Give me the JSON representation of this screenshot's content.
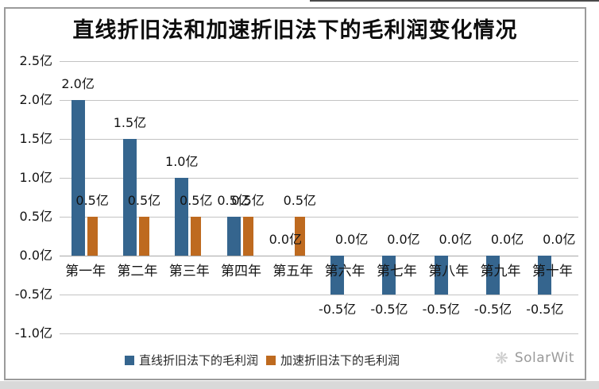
{
  "watermark": {
    "text": "SolarWit",
    "icon": "solarwit-snowflake-logo"
  },
  "chart_data": {
    "type": "bar",
    "title": "直线折旧法和加速折旧法下的毛利润变化情况",
    "unit": "亿",
    "categories": [
      "第一年",
      "第二年",
      "第三年",
      "第四年",
      "第五年",
      "第六年",
      "第七年",
      "第八年",
      "第九年",
      "第十年"
    ],
    "series": [
      {
        "name": "直线折旧法下的毛利润",
        "color": "#35658E",
        "values": [
          2.0,
          1.5,
          1.0,
          0.5,
          0.0,
          -0.5,
          -0.5,
          -0.5,
          -0.5,
          -0.5
        ],
        "data_labels": [
          "2.0亿",
          "1.5亿",
          "1.0亿",
          "0.5亿",
          "0.0亿",
          "-0.5亿",
          "-0.5亿",
          "-0.5亿",
          "-0.5亿",
          "-0.5亿"
        ]
      },
      {
        "name": "加速折旧法下的毛利润",
        "color": "#BE6A1F",
        "values": [
          0.5,
          0.5,
          0.5,
          0.5,
          0.5,
          0.0,
          0.0,
          0.0,
          0.0,
          0.0
        ],
        "data_labels": [
          "0.5亿",
          "0.5亿",
          "0.5亿",
          "0.5亿",
          "0.5亿",
          "0.0亿",
          "0.0亿",
          "0.0亿",
          "0.0亿",
          "0.0亿"
        ]
      }
    ],
    "y_axis": {
      "min": -1.0,
      "max": 2.5,
      "ticks": [
        {
          "label": "2.5亿",
          "value": 2.5
        },
        {
          "label": "2.0亿",
          "value": 2.0
        },
        {
          "label": "1.5亿",
          "value": 1.5
        },
        {
          "label": "1.0亿",
          "value": 1.0
        },
        {
          "label": "0.5亿",
          "value": 0.5
        },
        {
          "label": "0.0亿",
          "value": 0.0
        },
        {
          "label": "-0.5亿",
          "value": -0.5
        },
        {
          "label": "-1.0亿",
          "value": -1.0
        }
      ]
    },
    "grid": true,
    "legend_position": "bottom"
  }
}
